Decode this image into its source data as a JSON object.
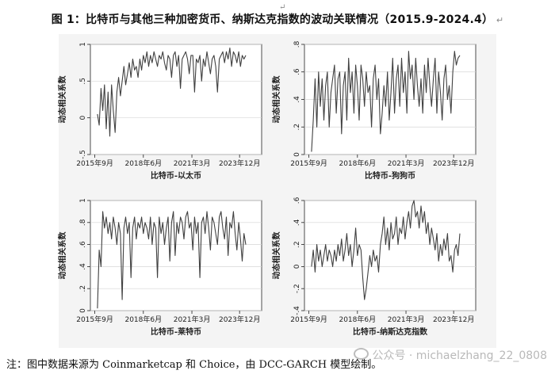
{
  "figure": {
    "title": "图 1：比特币与其他三种加密货币、纳斯达克指数的波动关联情况（2015.9-2024.4）",
    "note": "注：图中数据来源为 Coinmarketcap 和 Choice，由 DCC-GARCH 模型绘制。",
    "watermark": "公众号 · michaelzhang_22_0808"
  },
  "colors": {
    "line": "#404040",
    "axis": "#222222",
    "grid": "#d6d6d6",
    "background": "#f4f4f4"
  },
  "chart_data": [
    {
      "type": "line",
      "xlabel": "比特币-以太币",
      "ylabel": "动态相关系数",
      "ylim": [
        -0.5,
        1
      ],
      "yticks": [
        -0.5,
        0,
        0.5,
        1
      ],
      "ytick_labels": [
        "-.5",
        "0",
        ".5",
        "1"
      ],
      "xlim": [
        2015.5,
        2025.2
      ],
      "xticks": [
        2015.75,
        2018.5,
        2021.25,
        2023.95
      ],
      "xtick_labels": [
        "2015年9月",
        "2018年6月",
        "2021年3月",
        "2023年12月"
      ],
      "grid": true,
      "series": [
        {
          "x": [
            2015.9,
            2016.0,
            2016.1,
            2016.2,
            2016.3,
            2016.4,
            2016.5,
            2016.6,
            2016.7,
            2016.8,
            2016.9,
            2017.0,
            2017.1,
            2017.2,
            2017.3,
            2017.4,
            2017.5,
            2017.6,
            2017.7,
            2017.8,
            2017.9,
            2018.0,
            2018.1,
            2018.2,
            2018.3,
            2018.4,
            2018.5,
            2018.6,
            2018.7,
            2018.8,
            2018.9,
            2019.0,
            2019.1,
            2019.2,
            2019.3,
            2019.4,
            2019.5,
            2019.6,
            2019.7,
            2019.8,
            2019.9,
            2020.0,
            2020.1,
            2020.2,
            2020.3,
            2020.4,
            2020.5,
            2020.6,
            2020.7,
            2020.8,
            2020.9,
            2021.0,
            2021.1,
            2021.2,
            2021.3,
            2021.4,
            2021.5,
            2021.6,
            2021.7,
            2021.8,
            2021.9,
            2022.0,
            2022.1,
            2022.2,
            2022.3,
            2022.4,
            2022.5,
            2022.6,
            2022.7,
            2022.8,
            2022.9,
            2023.0,
            2023.1,
            2023.2,
            2023.3,
            2023.4,
            2023.5,
            2023.6,
            2023.7,
            2023.8,
            2023.9,
            2024.0,
            2024.1,
            2024.2,
            2024.3
          ],
          "y": [
            0.05,
            -0.1,
            0.4,
            0.1,
            0.45,
            -0.15,
            0.35,
            -0.25,
            0.45,
            0.1,
            -0.2,
            0.35,
            0.55,
            0.3,
            0.5,
            0.7,
            0.45,
            0.6,
            0.75,
            0.55,
            0.8,
            0.65,
            0.7,
            0.55,
            0.8,
            0.65,
            0.85,
            0.75,
            0.9,
            0.7,
            0.85,
            0.75,
            0.9,
            0.8,
            0.7,
            0.85,
            0.8,
            0.9,
            0.75,
            0.65,
            0.85,
            0.8,
            0.55,
            0.85,
            0.9,
            0.7,
            0.85,
            0.4,
            0.8,
            0.85,
            0.9,
            0.8,
            0.6,
            0.85,
            0.85,
            0.35,
            0.8,
            0.75,
            0.85,
            0.5,
            0.8,
            0.7,
            0.9,
            0.75,
            0.6,
            0.8,
            0.85,
            0.7,
            0.35,
            0.8,
            0.85,
            0.9,
            0.75,
            0.9,
            0.8,
            0.95,
            0.7,
            0.9,
            0.85,
            0.75,
            0.9,
            0.7,
            0.85,
            0.8,
            0.85
          ]
        }
      ]
    },
    {
      "type": "line",
      "xlabel": "比特币-狗狗币",
      "ylabel": "动态相关系数",
      "ylim": [
        0,
        0.8
      ],
      "yticks": [
        0,
        0.2,
        0.4,
        0.6,
        0.8
      ],
      "ytick_labels": [
        "0",
        ".2",
        ".4",
        ".6",
        ".8"
      ],
      "xlim": [
        2015.5,
        2025.2
      ],
      "xticks": [
        2015.75,
        2018.5,
        2021.25,
        2023.95
      ],
      "xtick_labels": [
        "2015年9月",
        "2018年6月",
        "2021年3月",
        "2023年12月"
      ],
      "grid": true,
      "series": [
        {
          "x": [
            2015.9,
            2016.0,
            2016.1,
            2016.2,
            2016.3,
            2016.4,
            2016.5,
            2016.6,
            2016.7,
            2016.8,
            2016.9,
            2017.0,
            2017.1,
            2017.2,
            2017.3,
            2017.4,
            2017.5,
            2017.6,
            2017.7,
            2017.8,
            2017.9,
            2018.0,
            2018.1,
            2018.2,
            2018.3,
            2018.4,
            2018.5,
            2018.6,
            2018.7,
            2018.8,
            2018.9,
            2019.0,
            2019.1,
            2019.2,
            2019.3,
            2019.4,
            2019.5,
            2019.6,
            2019.7,
            2019.8,
            2019.9,
            2020.0,
            2020.1,
            2020.2,
            2020.3,
            2020.4,
            2020.5,
            2020.6,
            2020.7,
            2020.8,
            2020.9,
            2021.0,
            2021.1,
            2021.2,
            2021.3,
            2021.4,
            2021.5,
            2021.6,
            2021.7,
            2021.8,
            2021.9,
            2022.0,
            2022.1,
            2022.2,
            2022.3,
            2022.4,
            2022.5,
            2022.6,
            2022.7,
            2022.8,
            2022.9,
            2023.0,
            2023.1,
            2023.2,
            2023.3,
            2023.4,
            2023.5,
            2023.6,
            2023.7,
            2023.8,
            2023.9,
            2024.0,
            2024.1,
            2024.2,
            2024.3
          ],
          "y": [
            0.02,
            0.25,
            0.55,
            0.2,
            0.6,
            0.35,
            0.55,
            0.25,
            0.5,
            0.6,
            0.2,
            0.45,
            0.55,
            0.65,
            0.3,
            0.55,
            0.6,
            0.15,
            0.5,
            0.6,
            0.25,
            0.7,
            0.45,
            0.6,
            0.3,
            0.65,
            0.5,
            0.25,
            0.65,
            0.55,
            0.35,
            0.6,
            0.45,
            0.5,
            0.2,
            0.55,
            0.65,
            0.4,
            0.55,
            0.15,
            0.3,
            0.5,
            0.35,
            0.6,
            0.25,
            0.45,
            0.7,
            0.3,
            0.55,
            0.65,
            0.35,
            0.7,
            0.45,
            0.6,
            0.3,
            0.75,
            0.55,
            0.65,
            0.4,
            0.7,
            0.5,
            0.35,
            0.55,
            0.3,
            0.65,
            0.45,
            0.7,
            0.5,
            0.35,
            0.55,
            0.7,
            0.3,
            0.6,
            0.45,
            0.25,
            0.55,
            0.65,
            0.4,
            0.5,
            0.3,
            0.6,
            0.75,
            0.65,
            0.7,
            0.72
          ]
        }
      ]
    },
    {
      "type": "line",
      "xlabel": "比特币-莱特币",
      "ylabel": "动态相关系数",
      "ylim": [
        0,
        1
      ],
      "yticks": [
        0,
        0.2,
        0.4,
        0.6,
        0.8,
        1
      ],
      "ytick_labels": [
        "0",
        ".2",
        ".4",
        ".6",
        ".8",
        "1"
      ],
      "xlim": [
        2015.5,
        2025.2
      ],
      "xticks": [
        2015.75,
        2018.5,
        2021.25,
        2023.95
      ],
      "xtick_labels": [
        "2015年9月",
        "2018年6月",
        "2021年3月",
        "2023年12月"
      ],
      "grid": true,
      "series": [
        {
          "x": [
            2015.9,
            2016.0,
            2016.1,
            2016.2,
            2016.3,
            2016.4,
            2016.5,
            2016.6,
            2016.7,
            2016.8,
            2016.9,
            2017.0,
            2017.1,
            2017.2,
            2017.3,
            2017.4,
            2017.5,
            2017.6,
            2017.7,
            2017.8,
            2017.9,
            2018.0,
            2018.1,
            2018.2,
            2018.3,
            2018.4,
            2018.5,
            2018.6,
            2018.7,
            2018.8,
            2018.9,
            2019.0,
            2019.1,
            2019.2,
            2019.3,
            2019.4,
            2019.5,
            2019.6,
            2019.7,
            2019.8,
            2019.9,
            2020.0,
            2020.1,
            2020.2,
            2020.3,
            2020.4,
            2020.5,
            2020.6,
            2020.7,
            2020.8,
            2020.9,
            2021.0,
            2021.1,
            2021.2,
            2021.3,
            2021.4,
            2021.5,
            2021.6,
            2021.7,
            2021.8,
            2021.9,
            2022.0,
            2022.1,
            2022.2,
            2022.3,
            2022.4,
            2022.5,
            2022.6,
            2022.7,
            2022.8,
            2022.9,
            2023.0,
            2023.1,
            2023.2,
            2023.3,
            2023.4,
            2023.5,
            2023.6,
            2023.7,
            2023.8,
            2023.9,
            2024.0,
            2024.1,
            2024.2,
            2024.3
          ],
          "y": [
            0.02,
            0.55,
            0.4,
            0.9,
            0.75,
            0.85,
            0.7,
            0.8,
            0.65,
            0.85,
            0.75,
            0.6,
            0.8,
            0.7,
            0.1,
            0.75,
            0.85,
            0.7,
            0.8,
            0.3,
            0.75,
            0.85,
            0.65,
            0.8,
            0.75,
            0.85,
            0.7,
            0.8,
            0.75,
            0.65,
            0.85,
            0.6,
            0.8,
            0.75,
            0.3,
            0.85,
            0.7,
            0.8,
            0.6,
            0.75,
            0.85,
            0.45,
            0.8,
            0.9,
            0.5,
            0.8,
            0.7,
            0.85,
            0.8,
            0.65,
            0.85,
            0.9,
            0.75,
            0.8,
            0.55,
            0.85,
            0.7,
            0.8,
            0.3,
            0.8,
            0.85,
            0.7,
            0.9,
            0.75,
            0.55,
            0.85,
            0.8,
            0.7,
            0.6,
            0.85,
            0.9,
            0.75,
            0.65,
            0.85,
            0.5,
            0.8,
            0.75,
            0.9,
            0.7,
            0.55,
            0.8,
            0.65,
            0.45,
            0.7,
            0.6
          ]
        }
      ]
    },
    {
      "type": "line",
      "xlabel": "比特币-纳斯达克指数",
      "ylabel": "动态相关系数",
      "ylim": [
        -0.4,
        0.6
      ],
      "yticks": [
        -0.4,
        -0.2,
        0,
        0.2,
        0.4,
        0.6
      ],
      "ytick_labels": [
        "-.4",
        "-.2",
        "0",
        ".2",
        ".4",
        ".6"
      ],
      "xlim": [
        2015.5,
        2025.2
      ],
      "xticks": [
        2015.75,
        2018.5,
        2021.25,
        2023.95
      ],
      "xtick_labels": [
        "2015年9月",
        "2018年6月",
        "2021年3月",
        "2023年12月"
      ],
      "grid": true,
      "series": [
        {
          "x": [
            2015.9,
            2016.0,
            2016.1,
            2016.2,
            2016.3,
            2016.4,
            2016.5,
            2016.6,
            2016.7,
            2016.8,
            2016.9,
            2017.0,
            2017.1,
            2017.2,
            2017.3,
            2017.4,
            2017.5,
            2017.6,
            2017.7,
            2017.8,
            2017.9,
            2018.0,
            2018.1,
            2018.2,
            2018.3,
            2018.4,
            2018.5,
            2018.6,
            2018.7,
            2018.8,
            2018.9,
            2019.0,
            2019.1,
            2019.2,
            2019.3,
            2019.4,
            2019.5,
            2019.6,
            2019.7,
            2019.8,
            2019.9,
            2020.0,
            2020.1,
            2020.2,
            2020.3,
            2020.4,
            2020.5,
            2020.6,
            2020.7,
            2020.8,
            2020.9,
            2021.0,
            2021.1,
            2021.2,
            2021.3,
            2021.4,
            2021.5,
            2021.6,
            2021.7,
            2021.8,
            2021.9,
            2022.0,
            2022.1,
            2022.2,
            2022.3,
            2022.4,
            2022.5,
            2022.6,
            2022.7,
            2022.8,
            2022.9,
            2023.0,
            2023.1,
            2023.2,
            2023.3,
            2023.4,
            2023.5,
            2023.6,
            2023.7,
            2023.8,
            2023.9,
            2024.0,
            2024.1,
            2024.2,
            2024.3
          ],
          "y": [
            0.0,
            0.15,
            -0.05,
            0.2,
            0.05,
            0.15,
            0.0,
            0.1,
            0.2,
            0.05,
            0.15,
            0.1,
            0.0,
            0.15,
            0.05,
            0.2,
            0.1,
            0.25,
            0.05,
            0.15,
            0.3,
            0.1,
            0.2,
            0.0,
            0.15,
            0.35,
            0.1,
            0.2,
            0.15,
            -0.1,
            -0.3,
            -0.2,
            -0.05,
            0.1,
            0.0,
            0.15,
            0.05,
            0.1,
            -0.05,
            0.2,
            0.3,
            0.45,
            0.2,
            0.35,
            0.15,
            0.4,
            0.25,
            0.3,
            0.45,
            0.2,
            0.35,
            0.3,
            0.45,
            0.25,
            0.4,
            0.5,
            0.35,
            0.55,
            0.6,
            0.45,
            0.5,
            0.35,
            0.55,
            0.4,
            0.5,
            0.3,
            0.4,
            0.2,
            0.35,
            0.25,
            0.15,
            0.3,
            0.05,
            0.2,
            0.1,
            0.25,
            0.15,
            0.3,
            0.05,
            0.1,
            -0.05,
            0.15,
            0.2,
            0.1,
            0.3
          ]
        }
      ]
    }
  ]
}
